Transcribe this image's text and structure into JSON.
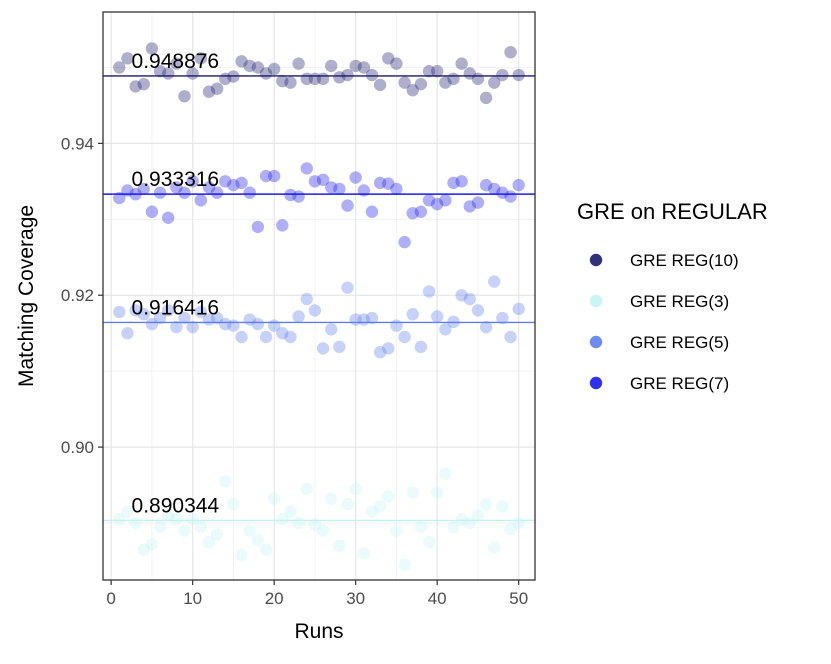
{
  "chart_data": {
    "type": "scatter",
    "title": "",
    "xlabel": "Runs",
    "ylabel": "Matching Coverage",
    "xlim": [
      -1,
      52
    ],
    "ylim": [
      0.8825,
      0.9573
    ],
    "xticks": [
      0,
      10,
      20,
      30,
      40,
      50
    ],
    "xtick_labels": [
      "0",
      "10",
      "20",
      "30",
      "40",
      "50"
    ],
    "yticks": [
      0.9,
      0.92,
      0.94
    ],
    "ytick_labels": [
      "0.90",
      "0.92",
      "0.94"
    ],
    "grid": true,
    "legend": {
      "title": "GRE on REGULAR",
      "position": "right",
      "entries": [
        "GRE REG(10)",
        "GRE REG(3)",
        "GRE REG(5)",
        "GRE REG(7)"
      ]
    },
    "colors": {
      "GRE REG(10)": "#191970",
      "GRE REG(3)": "#bff3f3",
      "GRE REG(5)": "#5b7ff0",
      "GRE REG(7)": "#1a1aee"
    },
    "series": [
      {
        "name": "GRE REG(10)",
        "mean": 0.948876,
        "mean_label": "0.948876",
        "x": [
          1,
          2,
          3,
          4,
          5,
          6,
          7,
          8,
          9,
          10,
          11,
          12,
          13,
          14,
          15,
          16,
          17,
          18,
          19,
          20,
          21,
          22,
          23,
          24,
          25,
          26,
          27,
          28,
          29,
          30,
          31,
          32,
          33,
          34,
          35,
          36,
          37,
          38,
          39,
          40,
          41,
          42,
          43,
          44,
          45,
          46,
          47,
          48,
          49,
          50
        ],
        "y": [
          0.95,
          0.9512,
          0.9475,
          0.9478,
          0.9525,
          0.9495,
          0.9492,
          0.9505,
          0.9462,
          0.9492,
          0.9512,
          0.9468,
          0.9472,
          0.9485,
          0.9488,
          0.9508,
          0.9502,
          0.95,
          0.9492,
          0.9498,
          0.9482,
          0.948,
          0.9505,
          0.9485,
          0.9485,
          0.9485,
          0.9502,
          0.9487,
          0.949,
          0.9502,
          0.95,
          0.949,
          0.9477,
          0.9512,
          0.9505,
          0.948,
          0.947,
          0.9478,
          0.9495,
          0.9495,
          0.948,
          0.9485,
          0.9505,
          0.9492,
          0.9485,
          0.946,
          0.948,
          0.949,
          0.952,
          0.949
        ]
      },
      {
        "name": "GRE REG(7)",
        "mean": 0.933316,
        "mean_label": "0.933316",
        "x": [
          1,
          2,
          3,
          4,
          5,
          6,
          7,
          8,
          9,
          10,
          11,
          12,
          13,
          14,
          15,
          16,
          17,
          18,
          19,
          20,
          21,
          22,
          23,
          24,
          25,
          26,
          27,
          28,
          29,
          30,
          31,
          32,
          33,
          34,
          35,
          36,
          37,
          38,
          39,
          40,
          41,
          42,
          43,
          44,
          45,
          46,
          47,
          48,
          49,
          50
        ],
        "y": [
          0.9328,
          0.9338,
          0.9333,
          0.934,
          0.931,
          0.9335,
          0.9302,
          0.9342,
          0.9335,
          0.935,
          0.9325,
          0.9342,
          0.9335,
          0.935,
          0.9345,
          0.9348,
          0.9335,
          0.929,
          0.9357,
          0.9357,
          0.9292,
          0.9332,
          0.933,
          0.9367,
          0.935,
          0.9352,
          0.9342,
          0.934,
          0.9318,
          0.9355,
          0.9338,
          0.931,
          0.9348,
          0.9347,
          0.934,
          0.927,
          0.9308,
          0.931,
          0.9325,
          0.932,
          0.9325,
          0.9348,
          0.935,
          0.9317,
          0.9322,
          0.9345,
          0.934,
          0.9335,
          0.933,
          0.9345
        ]
      },
      {
        "name": "GRE REG(5)",
        "mean": 0.916416,
        "mean_label": "0.916416",
        "x": [
          1,
          2,
          3,
          4,
          5,
          6,
          7,
          8,
          9,
          10,
          11,
          12,
          13,
          14,
          15,
          16,
          17,
          18,
          19,
          20,
          21,
          22,
          23,
          24,
          25,
          26,
          27,
          28,
          29,
          30,
          31,
          32,
          33,
          34,
          35,
          36,
          37,
          38,
          39,
          40,
          41,
          42,
          43,
          44,
          45,
          46,
          47,
          48,
          49,
          50
        ],
        "y": [
          0.9178,
          0.915,
          0.918,
          0.9175,
          0.9162,
          0.917,
          0.918,
          0.9158,
          0.917,
          0.9158,
          0.9178,
          0.9168,
          0.917,
          0.9162,
          0.916,
          0.9145,
          0.9168,
          0.9162,
          0.9145,
          0.916,
          0.915,
          0.9145,
          0.9172,
          0.9195,
          0.918,
          0.913,
          0.9155,
          0.9132,
          0.921,
          0.9168,
          0.9168,
          0.917,
          0.9125,
          0.913,
          0.916,
          0.9145,
          0.9175,
          0.9132,
          0.9205,
          0.9172,
          0.9155,
          0.9165,
          0.92,
          0.9195,
          0.918,
          0.9158,
          0.9218,
          0.917,
          0.9145,
          0.9182
        ]
      },
      {
        "name": "GRE REG(3)",
        "mean": 0.890344,
        "mean_label": "0.890344",
        "x": [
          1,
          2,
          3,
          4,
          5,
          6,
          7,
          8,
          9,
          10,
          11,
          12,
          13,
          14,
          15,
          16,
          17,
          18,
          19,
          20,
          21,
          22,
          23,
          24,
          25,
          26,
          27,
          28,
          29,
          30,
          31,
          32,
          33,
          34,
          35,
          36,
          37,
          38,
          39,
          40,
          41,
          42,
          43,
          44,
          45,
          46,
          47,
          48,
          49,
          50
        ],
        "y": [
          0.8905,
          0.8915,
          0.89,
          0.8865,
          0.8872,
          0.8895,
          0.891,
          0.8905,
          0.889,
          0.8905,
          0.8895,
          0.8875,
          0.8885,
          0.8955,
          0.8925,
          0.8858,
          0.889,
          0.8878,
          0.8865,
          0.8932,
          0.8905,
          0.8915,
          0.89,
          0.8945,
          0.8898,
          0.889,
          0.8932,
          0.887,
          0.8925,
          0.8945,
          0.886,
          0.8915,
          0.8922,
          0.8935,
          0.889,
          0.8845,
          0.894,
          0.8895,
          0.8875,
          0.894,
          0.8965,
          0.8895,
          0.8905,
          0.89,
          0.891,
          0.8925,
          0.8868,
          0.8922,
          0.8892,
          0.89
        ]
      }
    ]
  }
}
